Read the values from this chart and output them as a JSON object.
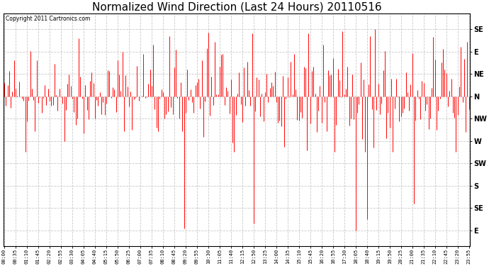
{
  "title": "Normalized Wind Direction (Last 24 Hours) 20110516",
  "copyright_text": "Copyright 2011 Cartronics.com",
  "line_color": "#ff0000",
  "background_color": "#ffffff",
  "plot_bg_color": "#ffffff",
  "grid_color": "#bbbbbb",
  "ytick_labels": [
    "SE",
    "E",
    "NE",
    "N",
    "NW",
    "W",
    "SW",
    "S",
    "SE",
    "E"
  ],
  "ytick_values": [
    10,
    9,
    8,
    7,
    6,
    5,
    4,
    3,
    2,
    1
  ],
  "ylim": [
    0.3,
    10.7
  ],
  "title_fontsize": 11,
  "seed": 42,
  "n_points": 288,
  "base_level": 7.0,
  "noise_scale": 0.9,
  "tick_interval_min": 35,
  "figwidth": 6.9,
  "figheight": 3.75,
  "dpi": 100
}
